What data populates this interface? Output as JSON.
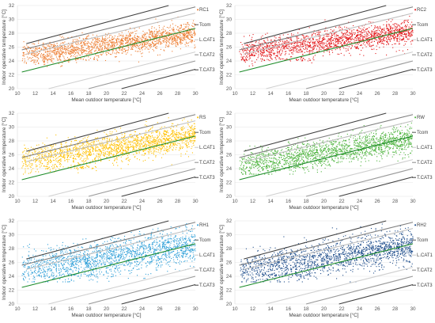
{
  "figure": {
    "background": "#ffffff"
  },
  "chart_data": [
    {
      "type": "scatter",
      "series": [
        {
          "name": "RC1",
          "color": "#ED7D31",
          "points": []
        }
      ],
      "xlabel": "Mean outdoor temperature [°C]",
      "ylabel": "Indoor operative temperature [°C]",
      "xlim": [
        10,
        30
      ],
      "ylim": [
        20,
        32
      ],
      "xticks": [
        10,
        12,
        14,
        16,
        18,
        20,
        22,
        24,
        26,
        28,
        30
      ],
      "yticks": [
        20,
        22,
        24,
        26,
        28,
        30,
        32
      ],
      "grid": "horizontal",
      "legend": [
        "RC1",
        "Tcom",
        "L.CAT1",
        "T.CAT2",
        "T.CAT3"
      ],
      "legend_position": "right"
    },
    {
      "type": "scatter",
      "series": [
        {
          "name": "RC2",
          "color": "#E31A1C",
          "points": []
        }
      ],
      "xlabel": "Mean outdoor temperature [°C]",
      "ylabel": "Indoor operative temperature [°C]",
      "xlim": [
        10,
        30
      ],
      "ylim": [
        20,
        32
      ],
      "xticks": [
        10,
        12,
        14,
        16,
        18,
        20,
        22,
        24,
        26,
        28,
        30
      ],
      "yticks": [
        20,
        22,
        24,
        26,
        28,
        30,
        32
      ],
      "grid": "horizontal",
      "legend": [
        "RC2",
        "Tcom",
        "L.CAT1",
        "T.CAT2",
        "T.CAT3"
      ],
      "legend_position": "right"
    },
    {
      "type": "scatter",
      "series": [
        {
          "name": "RS",
          "color": "#FFC000",
          "points": []
        }
      ],
      "xlabel": "Mean outdoor temperature [°C]",
      "ylabel": "Indoor operative temperature [°C]",
      "xlim": [
        10,
        30
      ],
      "ylim": [
        20,
        32
      ],
      "xticks": [
        10,
        12,
        14,
        16,
        18,
        20,
        22,
        24,
        26,
        28,
        30
      ],
      "yticks": [
        20,
        22,
        24,
        26,
        28,
        30,
        32
      ],
      "grid": "horizontal",
      "legend": [
        "RS",
        "Tcom",
        "L.CAT1",
        "T.CAT2",
        "T.CAT3"
      ],
      "legend_position": "right"
    },
    {
      "type": "scatter",
      "series": [
        {
          "name": "RW",
          "color": "#4CB33C",
          "points": []
        }
      ],
      "xlabel": "Mean outdoor temperature [°C]",
      "ylabel": "Indoor operative temperature [°C]",
      "xlim": [
        10,
        30
      ],
      "ylim": [
        20,
        32
      ],
      "xticks": [
        10,
        12,
        14,
        16,
        18,
        20,
        22,
        24,
        26,
        28,
        30
      ],
      "yticks": [
        20,
        22,
        24,
        26,
        28,
        30,
        32
      ],
      "grid": "horizontal",
      "legend": [
        "RW",
        "Tcom",
        "L.CAT1",
        "T.CAT2",
        "T.CAT3"
      ],
      "legend_position": "right"
    },
    {
      "type": "scatter",
      "series": [
        {
          "name": "RH1",
          "color": "#2E9FD8",
          "points": []
        }
      ],
      "xlabel": "Mean outdoor temperature [°C]",
      "ylabel": "Indoor operative temperature [°C]",
      "xlim": [
        10,
        30
      ],
      "ylim": [
        20,
        32
      ],
      "xticks": [
        10,
        12,
        14,
        16,
        18,
        20,
        22,
        24,
        26,
        28,
        30
      ],
      "yticks": [
        20,
        22,
        24,
        26,
        28,
        30,
        32
      ],
      "grid": "horizontal",
      "legend": [
        "RH1",
        "Tcom",
        "L.CAT1",
        "T.CAT2",
        "T.CAT3"
      ],
      "legend_position": "right"
    },
    {
      "type": "scatter",
      "series": [
        {
          "name": "RH2",
          "color": "#1F4E8C",
          "points": []
        }
      ],
      "xlabel": "Mean outdoor temperature [°C]",
      "ylabel": "Indoor operative temperature [°C]",
      "xlim": [
        10,
        30
      ],
      "ylim": [
        20,
        32
      ],
      "xticks": [
        10,
        12,
        14,
        16,
        18,
        20,
        22,
        24,
        26,
        28,
        30
      ],
      "yticks": [
        20,
        22,
        24,
        26,
        28,
        30,
        32
      ],
      "grid": "horizontal",
      "legend": [
        "RH2",
        "Tcom",
        "L.CAT1",
        "T.CAT2",
        "T.CAT3"
      ],
      "legend_position": "right"
    }
  ],
  "reference_lines": {
    "Tcom": {
      "color": "#1E8C2A",
      "points": [
        [
          10.5,
          22.4
        ],
        [
          30,
          28.7
        ]
      ]
    },
    "upper_1": {
      "color": "#BFBFBF",
      "points": [
        [
          11,
          25.0
        ],
        [
          30,
          30.9
        ]
      ]
    },
    "upper_2": {
      "color": "#7F7F7F",
      "points": [
        [
          10.5,
          25.6
        ],
        [
          30,
          31.8
        ]
      ]
    },
    "upper_3": {
      "color": "#404040",
      "points": [
        [
          11,
          26.5
        ],
        [
          27,
          32
        ]
      ]
    },
    "L.CAT1": {
      "color": "#D0D0D0",
      "points": [
        [
          13.5,
          20
        ],
        [
          30,
          25.3
        ]
      ]
    },
    "T.CAT2": {
      "color": "#9A9A9A",
      "points": [
        [
          18,
          20
        ],
        [
          30,
          24.0
        ]
      ]
    },
    "T.CAT3": {
      "color": "#404040",
      "points": [
        [
          21.7,
          20
        ],
        [
          30,
          22.8
        ]
      ]
    }
  }
}
